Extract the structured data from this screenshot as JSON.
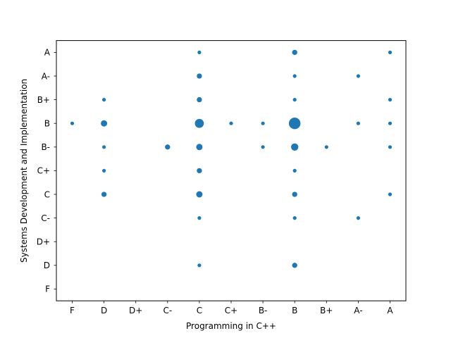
{
  "chart_data": {
    "type": "scatter",
    "title": "",
    "xlabel": "Programming in C++",
    "ylabel": "Systems Development and Implementation",
    "x_categories": [
      "F",
      "D",
      "D+",
      "C-",
      "C",
      "C+",
      "B-",
      "B",
      "B+",
      "A-",
      "A"
    ],
    "y_categories": [
      "F",
      "D",
      "D+",
      "C-",
      "C",
      "C+",
      "B-",
      "B",
      "B+",
      "A-",
      "A"
    ],
    "marker_color": "#1f77b4",
    "grid": false,
    "points": [
      {
        "x": "F",
        "y": "B",
        "count": 1
      },
      {
        "x": "D",
        "y": "B+",
        "count": 1
      },
      {
        "x": "D",
        "y": "B",
        "count": 3
      },
      {
        "x": "D",
        "y": "B-",
        "count": 1
      },
      {
        "x": "D",
        "y": "C+",
        "count": 1
      },
      {
        "x": "D",
        "y": "C",
        "count": 2
      },
      {
        "x": "C-",
        "y": "B-",
        "count": 2
      },
      {
        "x": "C",
        "y": "A",
        "count": 1
      },
      {
        "x": "C",
        "y": "A-",
        "count": 2
      },
      {
        "x": "C",
        "y": "B+",
        "count": 2
      },
      {
        "x": "C",
        "y": "B",
        "count": 6
      },
      {
        "x": "C",
        "y": "B-",
        "count": 3
      },
      {
        "x": "C",
        "y": "C+",
        "count": 2
      },
      {
        "x": "C",
        "y": "C",
        "count": 3
      },
      {
        "x": "C",
        "y": "C-",
        "count": 1
      },
      {
        "x": "C",
        "y": "D",
        "count": 1
      },
      {
        "x": "C+",
        "y": "B",
        "count": 1
      },
      {
        "x": "B-",
        "y": "B",
        "count": 1
      },
      {
        "x": "B-",
        "y": "B-",
        "count": 1
      },
      {
        "x": "B",
        "y": "A",
        "count": 2
      },
      {
        "x": "B",
        "y": "A-",
        "count": 1
      },
      {
        "x": "B",
        "y": "B+",
        "count": 1
      },
      {
        "x": "B",
        "y": "B",
        "count": 10
      },
      {
        "x": "B",
        "y": "B-",
        "count": 4
      },
      {
        "x": "B",
        "y": "C+",
        "count": 1
      },
      {
        "x": "B",
        "y": "C",
        "count": 2
      },
      {
        "x": "B",
        "y": "C-",
        "count": 1
      },
      {
        "x": "B",
        "y": "D",
        "count": 2
      },
      {
        "x": "B+",
        "y": "B-",
        "count": 1
      },
      {
        "x": "A-",
        "y": "A-",
        "count": 1
      },
      {
        "x": "A-",
        "y": "B",
        "count": 1
      },
      {
        "x": "A-",
        "y": "C-",
        "count": 1
      },
      {
        "x": "A",
        "y": "A",
        "count": 1
      },
      {
        "x": "A",
        "y": "B+",
        "count": 1
      },
      {
        "x": "A",
        "y": "B",
        "count": 1
      },
      {
        "x": "A",
        "y": "B-",
        "count": 1
      },
      {
        "x": "A",
        "y": "C",
        "count": 1
      }
    ]
  }
}
